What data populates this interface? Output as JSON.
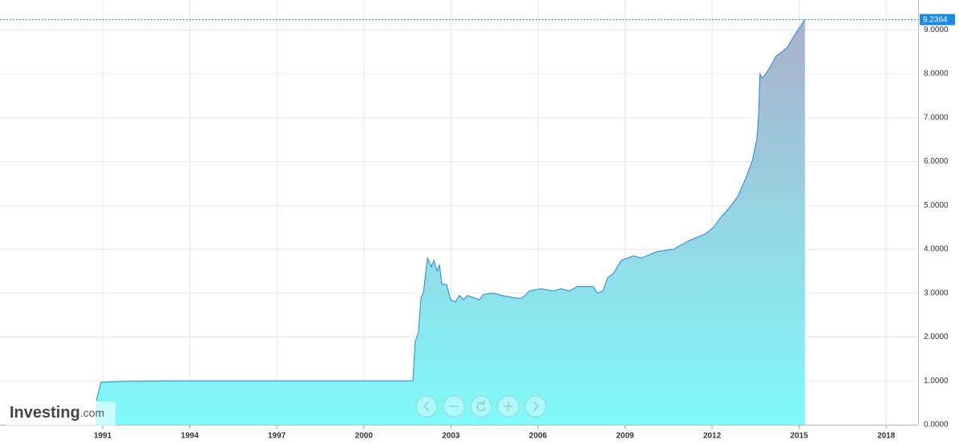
{
  "chart_data": {
    "type": "area",
    "x": [
      1990.78,
      1990.94,
      1991.33,
      1991.88,
      1992.99,
      2001.69,
      2001.77,
      2001.88,
      2001.97,
      2002.05,
      2002.19,
      2002.33,
      2002.41,
      2002.52,
      2002.6,
      2002.69,
      2002.85,
      2002.99,
      2003.15,
      2003.29,
      2003.43,
      2003.57,
      2003.76,
      2003.98,
      2004.12,
      2004.45,
      2004.73,
      2005.14,
      2005.42,
      2005.56,
      2005.7,
      2006.11,
      2006.52,
      2006.8,
      2007.08,
      2007.35,
      2007.91,
      2008.04,
      2008.24,
      2008.4,
      2008.6,
      2008.87,
      2009.29,
      2009.56,
      2010.12,
      2010.67,
      2011.22,
      2011.77,
      2012.05,
      2012.33,
      2012.6,
      2012.88,
      2013.15,
      2013.38,
      2013.54,
      2013.6,
      2013.65,
      2013.73,
      2013.85,
      2014.04,
      2014.2,
      2014.4,
      2014.59,
      2014.81,
      2015.2
    ],
    "values": [
      0.55,
      0.97,
      0.98,
      0.99,
      1.0,
      1.0,
      1.9,
      2.1,
      2.9,
      3.0,
      3.8,
      3.6,
      3.75,
      3.5,
      3.65,
      3.2,
      3.2,
      2.85,
      2.8,
      2.95,
      2.85,
      2.95,
      2.9,
      2.85,
      2.97,
      3.0,
      2.95,
      2.9,
      2.88,
      2.95,
      3.05,
      3.1,
      3.05,
      3.1,
      3.05,
      3.15,
      3.15,
      3.0,
      3.05,
      3.35,
      3.45,
      3.75,
      3.85,
      3.8,
      3.95,
      4.0,
      4.2,
      4.35,
      4.5,
      4.75,
      4.95,
      5.2,
      5.6,
      6.0,
      6.5,
      7.0,
      8.0,
      7.9,
      8.0,
      8.2,
      8.4,
      8.5,
      8.6,
      8.85,
      9.2364
    ],
    "color": "#1e88e5",
    "fill_colors": [
      "#7ffafa",
      "#aab0cb"
    ],
    "last_value": 9.2364,
    "xlim": [
      1987.46,
      2019.1
    ],
    "xticks": [
      1991,
      1994,
      1997,
      2000,
      2003,
      2006,
      2009,
      2012,
      2015,
      2018
    ],
    "ylim": [
      0,
      9.5
    ],
    "yticks": [
      {
        "value": 0,
        "label": "0.0000"
      },
      {
        "value": 1,
        "label": "1.0000"
      },
      {
        "value": 2,
        "label": "2.0000"
      },
      {
        "value": 3,
        "label": "3.0000"
      },
      {
        "value": 4,
        "label": "4.0000"
      },
      {
        "value": 5,
        "label": "5.0000"
      },
      {
        "value": 6,
        "label": "6.0000"
      },
      {
        "value": 7,
        "label": "7.0000"
      },
      {
        "value": 8,
        "label": "8.0000"
      },
      {
        "value": 9,
        "label": "9.0000"
      }
    ],
    "grid": true
  },
  "branding": {
    "name": "Investing",
    "suffix": ".com"
  }
}
